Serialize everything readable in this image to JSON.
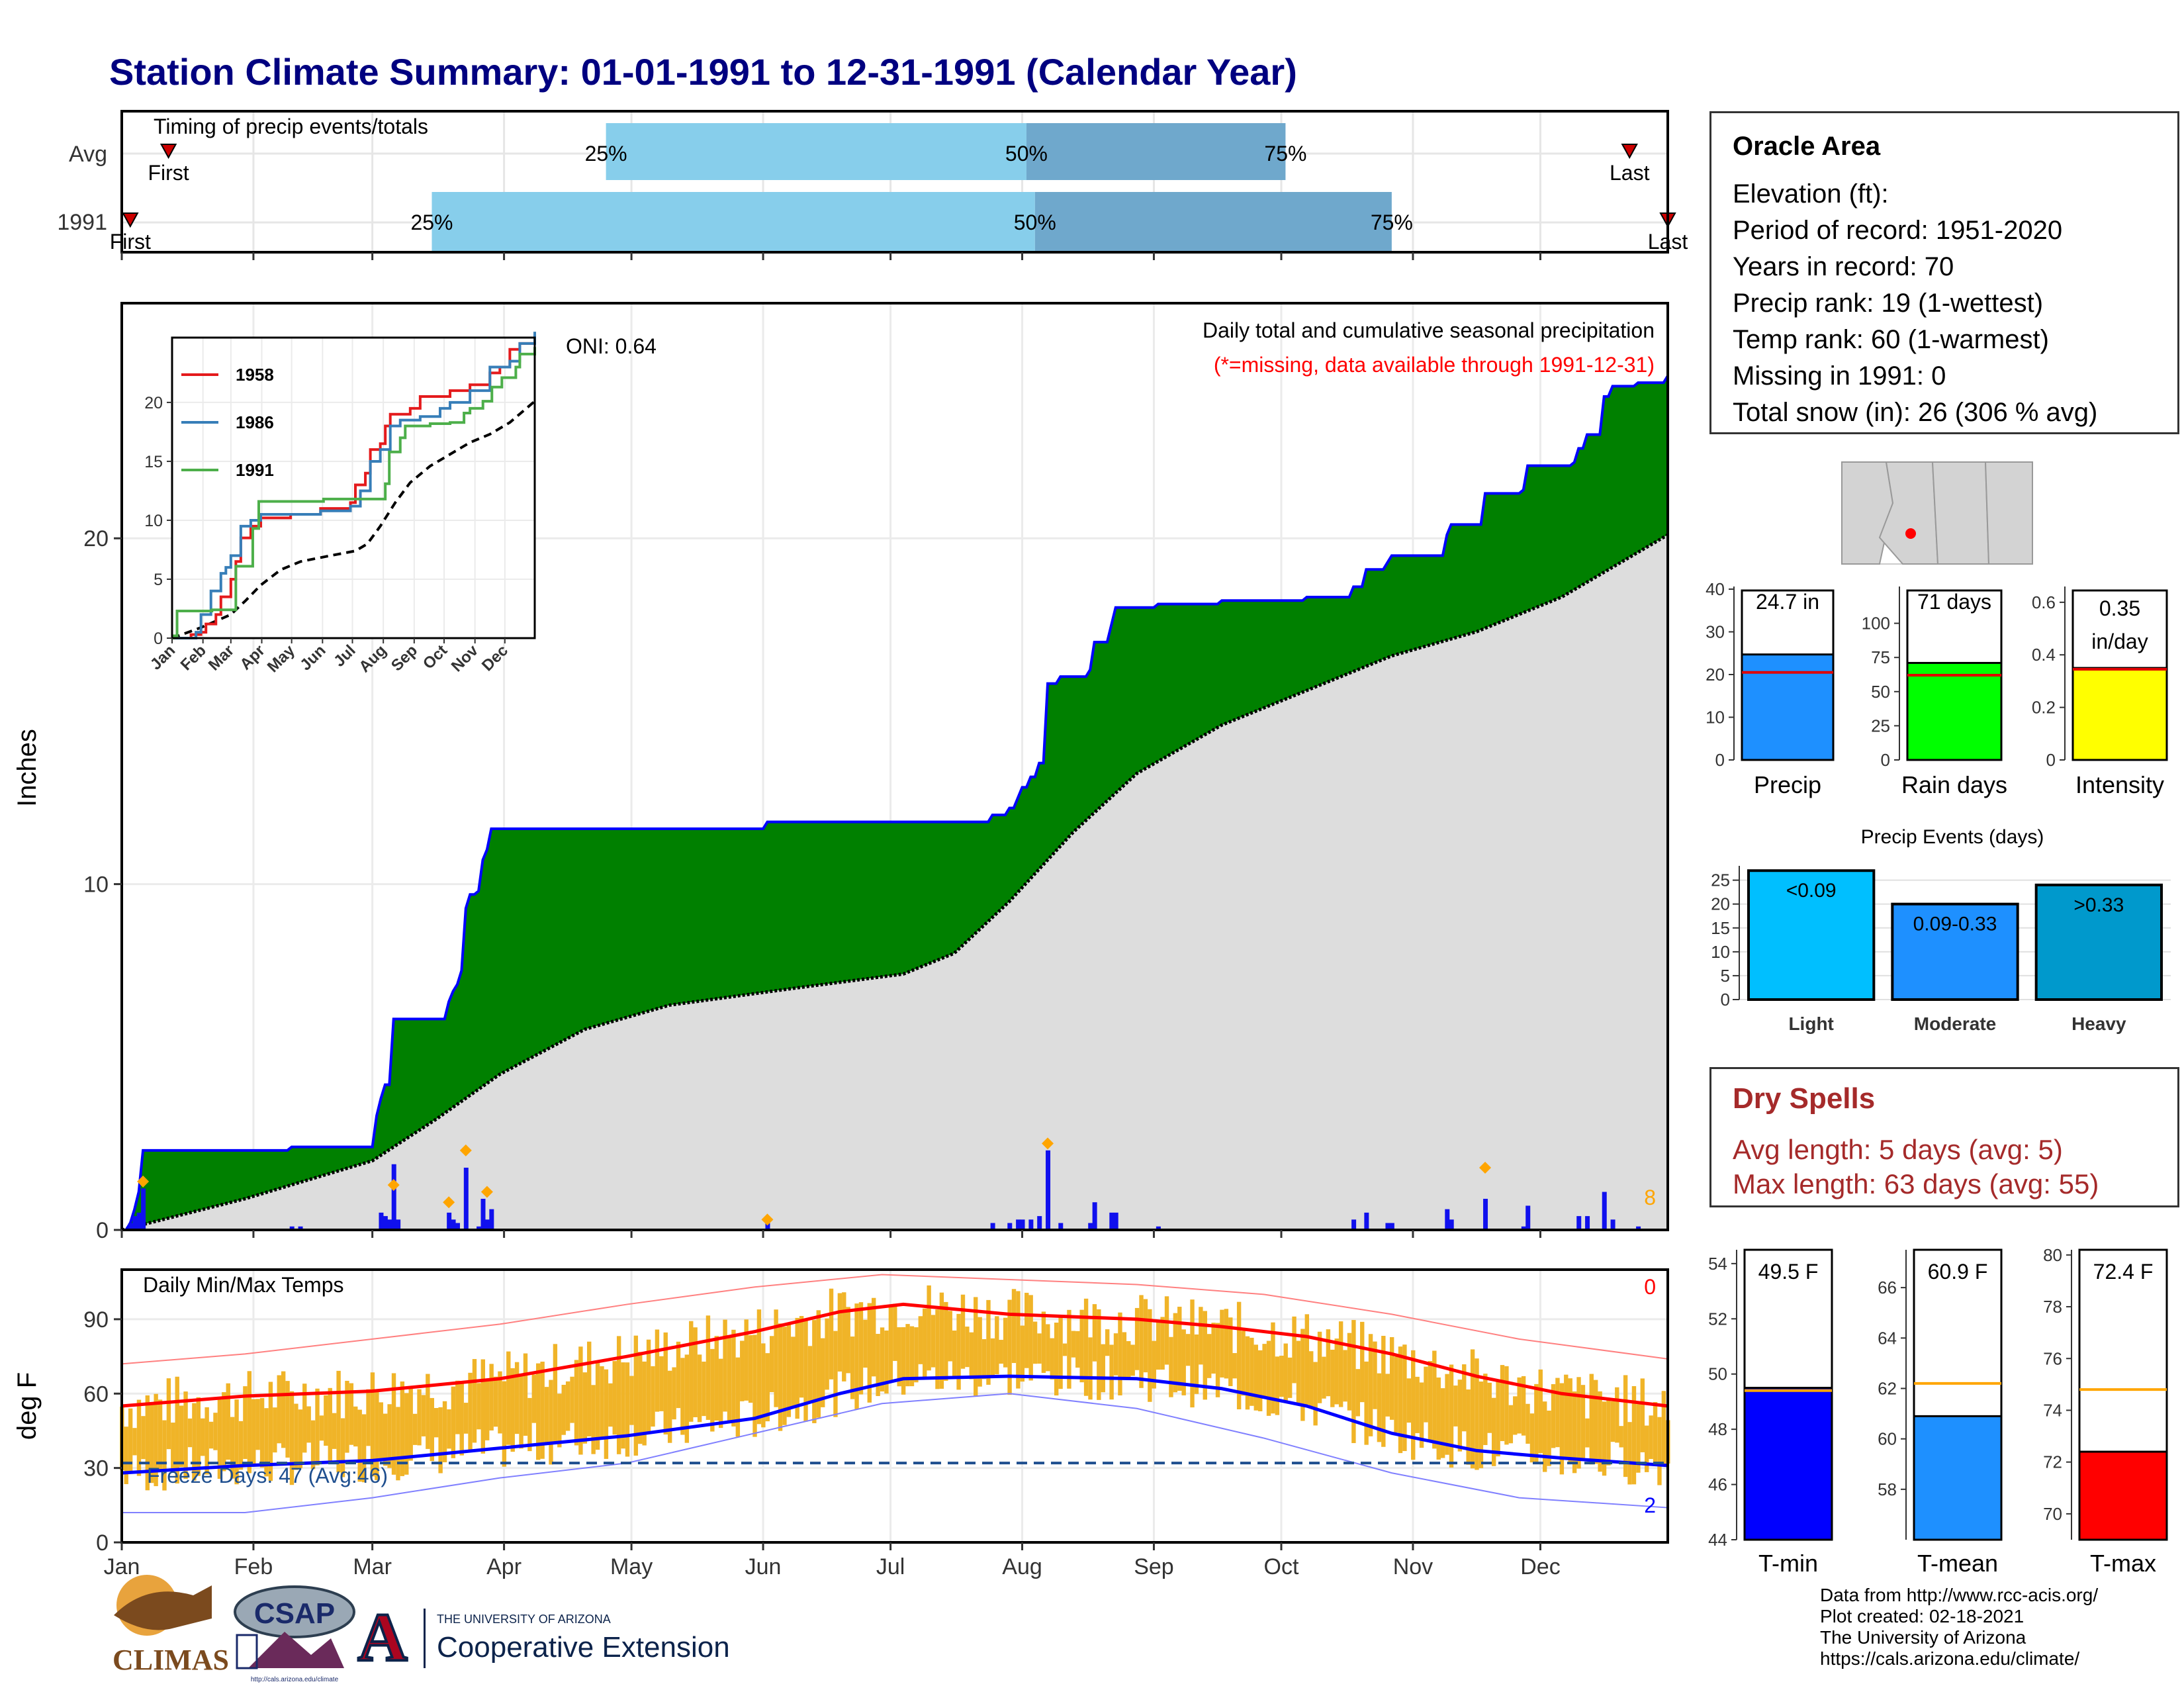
{
  "title": "Station Climate Summary: 01-01-1991 to 12-31-1991 (Calendar Year)",
  "colors": {
    "title": "#000080",
    "precip_area": "#008000",
    "normal_area": "#dddddd",
    "cum_line": "#0000ff",
    "bar_light": "#87CEEB",
    "bar_dark": "#6fa8cc",
    "temp_bar": "#F0B428",
    "tmax_line": "#ff0000",
    "tmin_line": "#0000ff",
    "dry_spells": "#A52A2A"
  },
  "timing": {
    "title": "Timing of precip events/totals",
    "rows": [
      {
        "label": "Avg",
        "first": 12,
        "last": 356,
        "p25": 115,
        "p50": 214,
        "p75": 275,
        "first_label": "First",
        "last_label": "Last"
      },
      {
        "label": "1991",
        "first": 3,
        "last": 365,
        "p25": 74,
        "p50": 216,
        "p75": 300,
        "first_label": "First",
        "last_label": "Last"
      }
    ],
    "pct_labels": [
      "25%",
      "50%",
      "75%"
    ]
  },
  "precip_chart": {
    "ylabel": "Inches",
    "yticks": [
      0,
      10,
      20
    ],
    "ylim": [
      0,
      26.8
    ],
    "title_line1": "Daily total and cumulative seasonal precipitation",
    "title_line2": "(*=missing, data available through 1991-12-31)",
    "oni": "ONI: 0.64",
    "count_label": "8",
    "cumulative_1991": [
      [
        1,
        0
      ],
      [
        3,
        0.2
      ],
      [
        4,
        0.6
      ],
      [
        5,
        1.1
      ],
      [
        6,
        2.3
      ],
      [
        40,
        2.3
      ],
      [
        41,
        2.4
      ],
      [
        60,
        2.4
      ],
      [
        61,
        3.3
      ],
      [
        62,
        3.8
      ],
      [
        63,
        4.2
      ],
      [
        65,
        6.1
      ],
      [
        77,
        6.1
      ],
      [
        78,
        6.6
      ],
      [
        79,
        6.9
      ],
      [
        80,
        7.1
      ],
      [
        81,
        7.5
      ],
      [
        82,
        9.3
      ],
      [
        83,
        9.7
      ],
      [
        85,
        9.8
      ],
      [
        86,
        10.7
      ],
      [
        87,
        11.0
      ],
      [
        88,
        11.6
      ],
      [
        152,
        11.6
      ],
      [
        153,
        11.8
      ],
      [
        205,
        11.8
      ],
      [
        206,
        12.0
      ],
      [
        210,
        12.2
      ],
      [
        212,
        12.5
      ],
      [
        213,
        12.8
      ],
      [
        215,
        13.1
      ],
      [
        217,
        13.5
      ],
      [
        219,
        15.8
      ],
      [
        222,
        16.0
      ],
      [
        229,
        16.2
      ],
      [
        230,
        17.0
      ],
      [
        234,
        17.5
      ],
      [
        235,
        18.0
      ],
      [
        245,
        18.1
      ],
      [
        260,
        18.2
      ],
      [
        280,
        18.3
      ],
      [
        291,
        18.6
      ],
      [
        294,
        19.1
      ],
      [
        299,
        19.3
      ],
      [
        300,
        19.5
      ],
      [
        312,
        19.5
      ],
      [
        313,
        20.1
      ],
      [
        314,
        20.4
      ],
      [
        322,
        21.3
      ],
      [
        331,
        21.4
      ],
      [
        332,
        22.1
      ],
      [
        343,
        22.2
      ],
      [
        344,
        22.6
      ],
      [
        346,
        23.0
      ],
      [
        350,
        24.1
      ],
      [
        352,
        24.4
      ],
      [
        358,
        24.5
      ],
      [
        365,
        24.7
      ]
    ],
    "normal_cumulative": [
      [
        1,
        0
      ],
      [
        30,
        0.9
      ],
      [
        60,
        2.0
      ],
      [
        75,
        3.2
      ],
      [
        90,
        4.5
      ],
      [
        110,
        5.8
      ],
      [
        130,
        6.5
      ],
      [
        160,
        7.0
      ],
      [
        185,
        7.4
      ],
      [
        197,
        8.0
      ],
      [
        210,
        9.5
      ],
      [
        225,
        11.5
      ],
      [
        240,
        13.2
      ],
      [
        260,
        14.6
      ],
      [
        280,
        15.6
      ],
      [
        300,
        16.6
      ],
      [
        320,
        17.3
      ],
      [
        340,
        18.3
      ],
      [
        365,
        20.1
      ]
    ],
    "daily_bars": [
      [
        3,
        0.2
      ],
      [
        4,
        0.4
      ],
      [
        5,
        0.5
      ],
      [
        6,
        1.2
      ],
      [
        41,
        0.1
      ],
      [
        43,
        0.1
      ],
      [
        62,
        0.5
      ],
      [
        63,
        0.4
      ],
      [
        64,
        0.3
      ],
      [
        65,
        1.9
      ],
      [
        66,
        0.3
      ],
      [
        78,
        0.5
      ],
      [
        79,
        0.3
      ],
      [
        80,
        0.2
      ],
      [
        82,
        1.8
      ],
      [
        85,
        0.1
      ],
      [
        86,
        0.9
      ],
      [
        87,
        0.3
      ],
      [
        88,
        0.6
      ],
      [
        153,
        0.2
      ],
      [
        206,
        0.2
      ],
      [
        210,
        0.2
      ],
      [
        212,
        0.3
      ],
      [
        213,
        0.3
      ],
      [
        215,
        0.3
      ],
      [
        217,
        0.4
      ],
      [
        219,
        2.3
      ],
      [
        222,
        0.2
      ],
      [
        229,
        0.2
      ],
      [
        230,
        0.8
      ],
      [
        234,
        0.5
      ],
      [
        235,
        0.5
      ],
      [
        245,
        0.1
      ],
      [
        291,
        0.3
      ],
      [
        294,
        0.5
      ],
      [
        299,
        0.2
      ],
      [
        300,
        0.2
      ],
      [
        313,
        0.6
      ],
      [
        314,
        0.3
      ],
      [
        322,
        0.9
      ],
      [
        331,
        0.1
      ],
      [
        332,
        0.7
      ],
      [
        344,
        0.4
      ],
      [
        346,
        0.4
      ],
      [
        350,
        1.1
      ],
      [
        352,
        0.3
      ],
      [
        358,
        0.1
      ]
    ],
    "large_event_markers": [
      [
        6,
        1.4
      ],
      [
        65,
        1.3
      ],
      [
        78,
        0.8
      ],
      [
        82,
        2.3
      ],
      [
        87,
        1.1
      ],
      [
        153,
        0.3
      ],
      [
        219,
        2.5
      ],
      [
        322,
        1.8
      ]
    ]
  },
  "inset": {
    "series": [
      {
        "name": "1958",
        "color": "#e41a1c",
        "points": [
          [
            1,
            0
          ],
          [
            20,
            0.3
          ],
          [
            30,
            0.5
          ],
          [
            35,
            1.2
          ],
          [
            45,
            2.0
          ],
          [
            50,
            3.5
          ],
          [
            60,
            5.0
          ],
          [
            65,
            6.5
          ],
          [
            70,
            8.5
          ],
          [
            80,
            9.5
          ],
          [
            90,
            10.2
          ],
          [
            120,
            10.5
          ],
          [
            150,
            11.0
          ],
          [
            180,
            11.5
          ],
          [
            185,
            13.0
          ],
          [
            195,
            14.0
          ],
          [
            200,
            16.0
          ],
          [
            210,
            16.5
          ],
          [
            215,
            18.0
          ],
          [
            220,
            19.0
          ],
          [
            240,
            19.5
          ],
          [
            250,
            20.5
          ],
          [
            280,
            21.0
          ],
          [
            300,
            21.5
          ],
          [
            320,
            22.5
          ],
          [
            330,
            23.0
          ],
          [
            340,
            24.5
          ],
          [
            350,
            25.0
          ],
          [
            365,
            25.0
          ]
        ]
      },
      {
        "name": "1986",
        "color": "#377eb8",
        "points": [
          [
            1,
            0
          ],
          [
            25,
            0.5
          ],
          [
            30,
            2.0
          ],
          [
            40,
            4.0
          ],
          [
            50,
            5.5
          ],
          [
            55,
            6.0
          ],
          [
            60,
            7.0
          ],
          [
            70,
            9.5
          ],
          [
            80,
            10.0
          ],
          [
            90,
            10.5
          ],
          [
            150,
            10.8
          ],
          [
            180,
            11.2
          ],
          [
            190,
            12.5
          ],
          [
            200,
            15.0
          ],
          [
            210,
            16.0
          ],
          [
            220,
            18.0
          ],
          [
            230,
            18.5
          ],
          [
            250,
            18.8
          ],
          [
            270,
            19.5
          ],
          [
            280,
            20.0
          ],
          [
            300,
            21.0
          ],
          [
            320,
            23.0
          ],
          [
            340,
            23.5
          ],
          [
            350,
            25.0
          ],
          [
            365,
            26.0
          ]
        ]
      },
      {
        "name": "1991",
        "color": "#4daf4a",
        "points": [
          [
            1,
            0
          ],
          [
            3,
            0.2
          ],
          [
            6,
            2.3
          ],
          [
            40,
            2.3
          ],
          [
            41,
            2.4
          ],
          [
            60,
            2.4
          ],
          [
            65,
            6.1
          ],
          [
            77,
            6.1
          ],
          [
            82,
            9.3
          ],
          [
            88,
            11.6
          ],
          [
            152,
            11.6
          ],
          [
            153,
            11.8
          ],
          [
            205,
            11.8
          ],
          [
            215,
            13.1
          ],
          [
            219,
            15.8
          ],
          [
            230,
            17.0
          ],
          [
            235,
            18.0
          ],
          [
            260,
            18.2
          ],
          [
            280,
            18.3
          ],
          [
            294,
            19.1
          ],
          [
            300,
            19.5
          ],
          [
            313,
            20.1
          ],
          [
            322,
            21.3
          ],
          [
            332,
            22.1
          ],
          [
            346,
            23.0
          ],
          [
            350,
            24.1
          ],
          [
            365,
            24.7
          ]
        ]
      }
    ],
    "avg_points": [
      [
        1,
        0
      ],
      [
        30,
        0.9
      ],
      [
        60,
        2.0
      ],
      [
        75,
        3.2
      ],
      [
        90,
        4.5
      ],
      [
        110,
        5.8
      ],
      [
        130,
        6.5
      ],
      [
        160,
        7.0
      ],
      [
        185,
        7.4
      ],
      [
        197,
        8.0
      ],
      [
        210,
        9.5
      ],
      [
        225,
        11.5
      ],
      [
        240,
        13.2
      ],
      [
        260,
        14.6
      ],
      [
        280,
        15.6
      ],
      [
        300,
        16.6
      ],
      [
        320,
        17.3
      ],
      [
        340,
        18.3
      ],
      [
        365,
        20.1
      ]
    ],
    "yticks": [
      0,
      5,
      10,
      15,
      20
    ],
    "ylim": [
      0,
      25.5
    ],
    "months": [
      "Jan",
      "Feb",
      "Mar",
      "Apr",
      "May",
      "Jun",
      "Jul",
      "Aug",
      "Sep",
      "Oct",
      "Nov",
      "Dec"
    ]
  },
  "temp_chart": {
    "ylabel": "deg F",
    "title": "Daily Min/Max Temps",
    "yticks": [
      0,
      30,
      60,
      90
    ],
    "ylim": [
      0,
      110
    ],
    "freeze_label": "Freeze Days: 47 (Avg:46)",
    "freeze_line": 32,
    "count_top": "0",
    "count_bottom": "2",
    "normal_max": [
      [
        1,
        55
      ],
      [
        30,
        59
      ],
      [
        60,
        61
      ],
      [
        90,
        66
      ],
      [
        120,
        75
      ],
      [
        150,
        85
      ],
      [
        170,
        93
      ],
      [
        185,
        96
      ],
      [
        210,
        92
      ],
      [
        240,
        90
      ],
      [
        260,
        87
      ],
      [
        280,
        83
      ],
      [
        300,
        76
      ],
      [
        320,
        67
      ],
      [
        340,
        60
      ],
      [
        365,
        55
      ]
    ],
    "normal_min": [
      [
        1,
        28
      ],
      [
        30,
        31
      ],
      [
        60,
        33
      ],
      [
        90,
        38
      ],
      [
        120,
        43
      ],
      [
        150,
        50
      ],
      [
        170,
        60
      ],
      [
        185,
        66
      ],
      [
        210,
        67
      ],
      [
        240,
        66
      ],
      [
        260,
        62
      ],
      [
        280,
        55
      ],
      [
        300,
        44
      ],
      [
        320,
        37
      ],
      [
        340,
        34
      ],
      [
        365,
        31
      ]
    ],
    "record_max": [
      [
        1,
        72
      ],
      [
        30,
        76
      ],
      [
        60,
        82
      ],
      [
        90,
        88
      ],
      [
        120,
        96
      ],
      [
        150,
        103
      ],
      [
        180,
        108
      ],
      [
        210,
        106
      ],
      [
        240,
        104
      ],
      [
        270,
        100
      ],
      [
        300,
        92
      ],
      [
        330,
        82
      ],
      [
        365,
        74
      ]
    ],
    "record_min": [
      [
        1,
        12
      ],
      [
        30,
        12
      ],
      [
        60,
        18
      ],
      [
        90,
        26
      ],
      [
        120,
        32
      ],
      [
        150,
        44
      ],
      [
        180,
        56
      ],
      [
        210,
        60
      ],
      [
        240,
        54
      ],
      [
        270,
        42
      ],
      [
        300,
        28
      ],
      [
        330,
        18
      ],
      [
        365,
        14
      ]
    ]
  },
  "months": [
    "Jan",
    "Feb",
    "Mar",
    "Apr",
    "May",
    "Jun",
    "Jul",
    "Aug",
    "Sep",
    "Oct",
    "Nov",
    "Dec"
  ],
  "station": {
    "name": "Oracle Area",
    "lines": [
      "Elevation (ft):",
      "Period of record: 1951-2020",
      "Years in record: 70",
      "Precip rank: 19 (1-wettest)",
      "Temp rank: 60 (1-warmest)",
      "Missing in 1991: 0",
      "Total snow (in): 26 (306 % avg)"
    ]
  },
  "mini_bars": [
    {
      "label": "Precip",
      "value_label": "24.7 in",
      "value": 24.7,
      "avg": 20.5,
      "ymax": 40,
      "yticks": [
        0,
        10,
        20,
        30,
        40
      ],
      "color": "#1E90FF"
    },
    {
      "label": "Rain days",
      "value_label": "71 days",
      "value": 71,
      "avg": 62,
      "ymax": 125,
      "yticks": [
        0,
        25,
        50,
        75,
        100
      ],
      "color": "#00FF00"
    },
    {
      "label": "Intensity",
      "value_label1": "0.35",
      "value_label2": "in/day",
      "value": 0.35,
      "avg": 0.345,
      "ymax": 0.65,
      "yticks": [
        0.0,
        0.2,
        0.4,
        0.6
      ],
      "color": "#FFFF00"
    }
  ],
  "events": {
    "title": "Precip Events (days)",
    "categories": [
      "Light",
      "Moderate",
      "Heavy"
    ],
    "values": [
      27,
      20,
      24
    ],
    "bar_labels": [
      "<0.09",
      "0.09-0.33",
      ">0.33"
    ],
    "colors": [
      "#00BFFF",
      "#1E90FF",
      "#0099CC"
    ],
    "yticks": [
      0,
      5,
      10,
      15,
      20,
      25
    ],
    "ymax": 28
  },
  "dry_spells": {
    "title": "Dry Spells",
    "lines": [
      "Avg length: 5 days (avg: 5)",
      "Max length: 63 days (avg: 55)"
    ]
  },
  "temp_bars": [
    {
      "label": "T-min",
      "value_label": "49.5 F",
      "value": 49.5,
      "avg": 49.4,
      "ymin": 44,
      "ymax": 54.5,
      "yticks": [
        44,
        46,
        48,
        50,
        52,
        54
      ],
      "color": "#0000FF"
    },
    {
      "label": "T-mean",
      "value_label": "60.9 F",
      "value": 60.9,
      "avg": 62.2,
      "ymin": 56,
      "ymax": 67.5,
      "yticks": [
        58,
        60,
        62,
        64,
        66
      ],
      "color": "#1E90FF"
    },
    {
      "label": "T-max",
      "value_label": "72.4 F",
      "value": 72.4,
      "avg": 74.8,
      "ymin": 69,
      "ymax": 80.2,
      "yticks": [
        70,
        72,
        74,
        76,
        78,
        80
      ],
      "color": "#FF0000"
    }
  ],
  "credits": [
    "Data from http://www.rcc-acis.org/",
    "Plot created: 02-18-2021",
    "The University of Arizona",
    "https://cals.arizona.edu/climate/"
  ],
  "logos": {
    "climas": "CLIMAS",
    "csap": "CSAP",
    "csap_url": "http://cals.arizona.edu/climate",
    "ua_small": "THE UNIVERSITY OF ARIZONA",
    "ua_big": "Cooperative Extension",
    "ua_letter": "A"
  }
}
